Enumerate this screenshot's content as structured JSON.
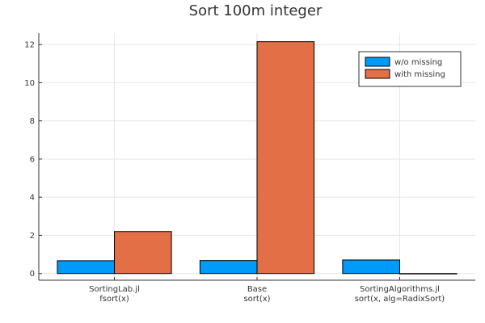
{
  "chart_data": {
    "type": "bar",
    "title": "Sort 100m integer",
    "xlabel": "",
    "ylabel": "",
    "categories": [
      [
        "SortingLab.jl",
        "fsort(x)"
      ],
      [
        "Base",
        "sort(x)"
      ],
      [
        "SortingAlgorithms.jl",
        "sort(x, alg=RadixSort)"
      ]
    ],
    "series": [
      {
        "name": "w/o missing",
        "color": "#009af9",
        "values": [
          0.67,
          0.68,
          0.71
        ]
      },
      {
        "name": "with missing",
        "color": "#e26f46",
        "values": [
          2.2,
          12.15,
          0.0
        ]
      }
    ],
    "ylim": [
      -0.35,
      12.6
    ],
    "yticks": [
      0,
      2,
      4,
      6,
      8,
      10,
      12
    ],
    "grid": true,
    "legend_position": "top-right"
  }
}
